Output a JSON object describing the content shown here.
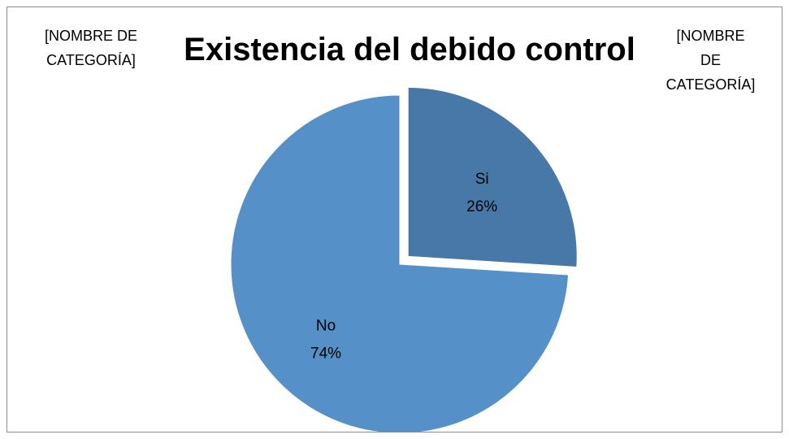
{
  "chart_data": {
    "type": "pie",
    "title": "Existencia del debido control",
    "categories": [
      "Si",
      "No"
    ],
    "values": [
      26,
      74
    ],
    "percent_labels": [
      "26%",
      "74%"
    ],
    "colors": [
      "#4878a8",
      "#5591c8"
    ],
    "exploded": [
      "Si"
    ],
    "legend": "none",
    "stray_labels": [
      "[NOMBRE DE CATEGORÍA]",
      "[NOMBRE DE CATEGORÍA]"
    ]
  }
}
